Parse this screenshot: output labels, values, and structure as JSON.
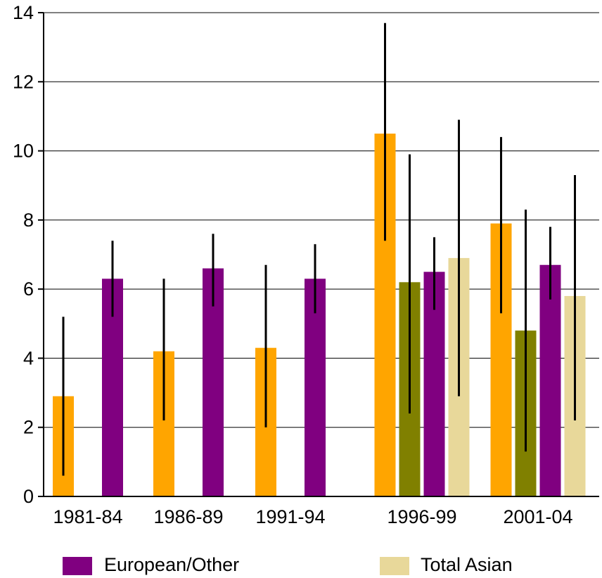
{
  "chart_data": {
    "type": "bar",
    "categories": [
      "1981-84",
      "1986-89",
      "1991-94",
      "1996-99",
      "2001-04"
    ],
    "ylim": [
      0,
      14
    ],
    "yticks": [
      0,
      2,
      4,
      6,
      8,
      10,
      12,
      14
    ],
    "grid": true,
    "legend_position": "bottom",
    "series": [
      {
        "color": "#FFA500",
        "values": [
          2.9,
          4.2,
          4.3,
          10.5,
          7.9
        ],
        "error_low": [
          0.6,
          2.2,
          2.0,
          7.4,
          5.3
        ],
        "error_high": [
          5.2,
          6.3,
          6.7,
          13.7,
          10.4
        ]
      },
      {
        "color": "#808000",
        "values": [
          null,
          null,
          null,
          6.2,
          4.8
        ],
        "error_low": [
          null,
          null,
          null,
          2.4,
          1.3
        ],
        "error_high": [
          null,
          null,
          null,
          9.9,
          8.3
        ]
      },
      {
        "name": "European/Other",
        "color": "#800080",
        "values": [
          6.3,
          6.6,
          6.3,
          6.5,
          6.7
        ],
        "error_low": [
          5.2,
          5.5,
          5.3,
          5.4,
          5.7
        ],
        "error_high": [
          7.4,
          7.6,
          7.3,
          7.5,
          7.8
        ]
      },
      {
        "name": "Total Asian",
        "color": "#E8D89A",
        "values": [
          null,
          null,
          null,
          6.9,
          5.8
        ],
        "error_low": [
          null,
          null,
          null,
          2.9,
          2.2
        ],
        "error_high": [
          null,
          null,
          null,
          10.9,
          9.3
        ]
      }
    ],
    "legend": [
      {
        "label": "European/Other",
        "color": "#800080"
      },
      {
        "label": "Total Asian",
        "color": "#E8D89A"
      }
    ]
  }
}
